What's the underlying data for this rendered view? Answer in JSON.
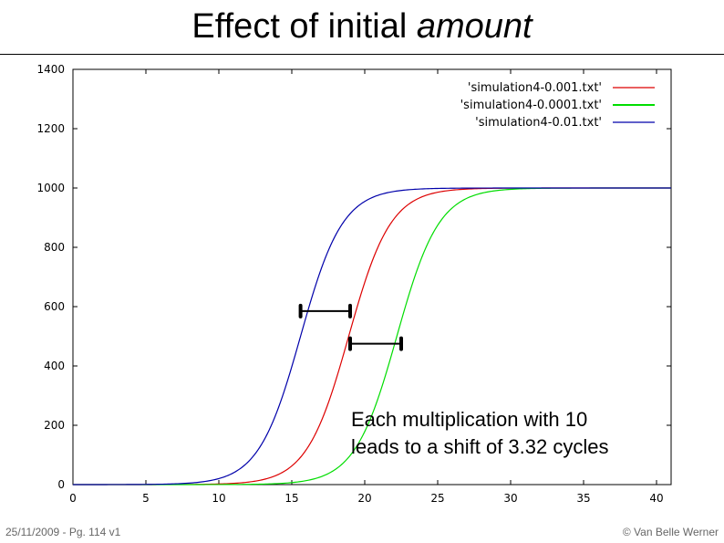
{
  "slide": {
    "title_prefix": "Effect of initial ",
    "title_emphasis": "amount",
    "footer_left": "25/11/2009 - Pg. 114 v1",
    "footer_right": "© Van Belle Werner"
  },
  "chart_data": {
    "type": "line",
    "xlim": [
      0,
      41
    ],
    "ylim": [
      0,
      1400
    ],
    "xticks": [
      0,
      5,
      10,
      15,
      20,
      25,
      30,
      35,
      40
    ],
    "yticks": [
      0,
      200,
      400,
      600,
      800,
      1000,
      1200,
      1400
    ],
    "legend_position": "top-right",
    "grid": false,
    "series": [
      {
        "name": "'simulation4-0.001.txt'",
        "color": "#dd0000",
        "x_start": 0,
        "x_end": 41,
        "midpoint_x": 18.9,
        "plateau": 1000,
        "rate": 0.693
      },
      {
        "name": "'simulation4-0.0001.txt'",
        "color": "#00dd00",
        "x_start": 0,
        "x_end": 41,
        "midpoint_x": 22.2,
        "plateau": 1000,
        "rate": 0.693
      },
      {
        "name": "'simulation4-0.01.txt'",
        "color": "#0000aa",
        "x_start": 0,
        "x_end": 41,
        "midpoint_x": 15.6,
        "plateau": 1000,
        "rate": 0.693
      }
    ],
    "intervals": [
      {
        "x1": 15.6,
        "x2": 19.0,
        "y": 585
      },
      {
        "x1": 19.0,
        "x2": 22.5,
        "y": 475
      }
    ],
    "annotation": [
      "Each multiplication with 10",
      "leads to a shift of 3.32 cycles"
    ]
  }
}
